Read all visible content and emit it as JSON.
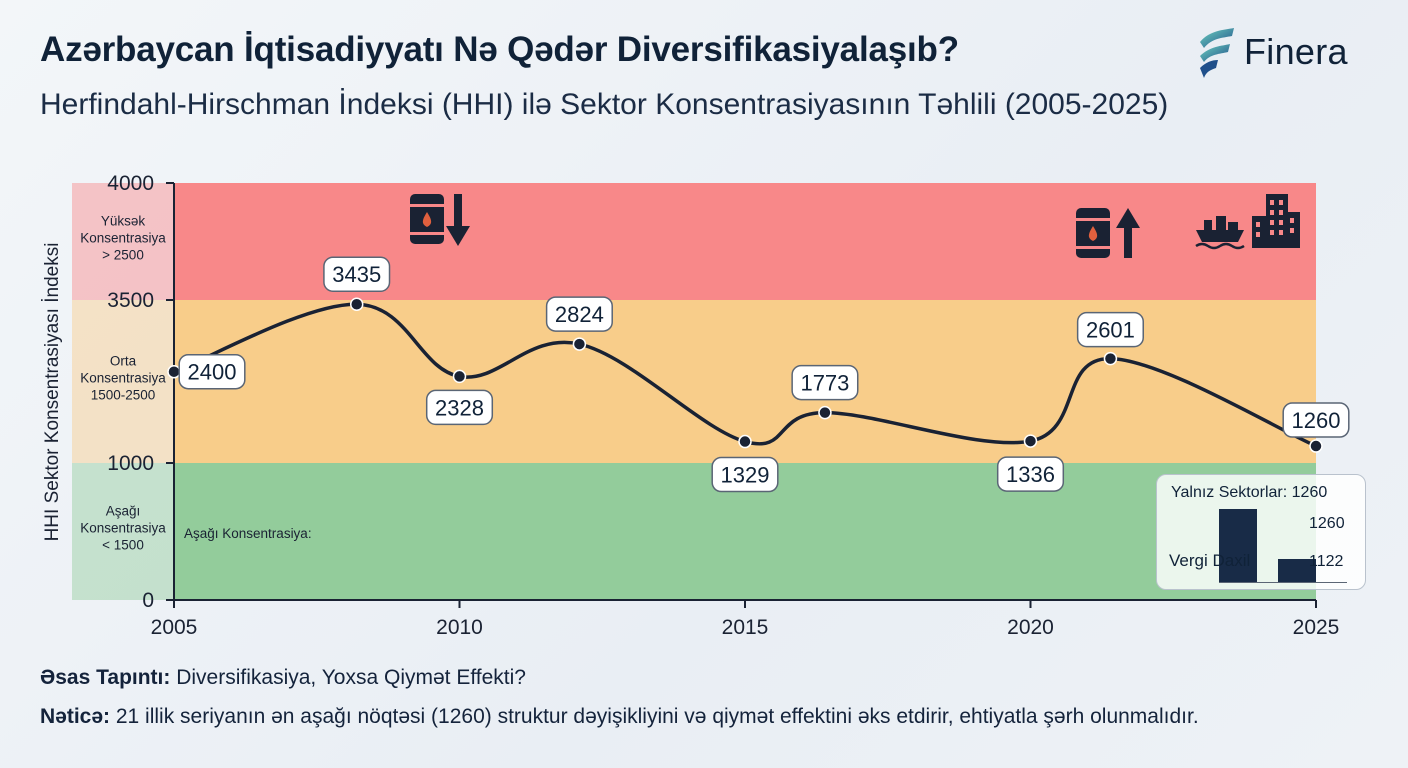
{
  "header": {
    "title": "Azərbaycan İqtisadiyyatı Nə Qədər Diversifikasiyalaşıb?",
    "subtitle": "Herfindahl-Hirschman İndeksi (HHI) ilə Sektor Konsentrasiyasının Təhlili (2005-2025)"
  },
  "logo": {
    "text": "Finera"
  },
  "chart_data": {
    "type": "line",
    "title": "",
    "xlabel": "",
    "ylabel": "HHI Sektor Konsentrasiyası İndeksi",
    "x_ticks": [
      "2005",
      "2010",
      "2015",
      "2020",
      "2025"
    ],
    "y_ticks": [
      "0",
      "1000",
      "3500",
      "4000"
    ],
    "series": [
      {
        "values": [
          {
            "x": 2005.0,
            "y": 2400
          },
          {
            "x": 2008.2,
            "y": 3435
          },
          {
            "x": 2010.0,
            "y": 2328
          },
          {
            "x": 2012.1,
            "y": 2824
          },
          {
            "x": 2015.0,
            "y": 1329
          },
          {
            "x": 2016.4,
            "y": 1773
          },
          {
            "x": 2020.0,
            "y": 1336
          },
          {
            "x": 2021.4,
            "y": 2601
          },
          {
            "x": 2025.0,
            "y": 1260
          }
        ],
        "labels": [
          "2400",
          "3435",
          "2328",
          "2824",
          "1329",
          "1773",
          "1336",
          "2601",
          "1260"
        ]
      }
    ],
    "bands": [
      {
        "label_lines": [
          "Yüksək",
          "Konsentrasiya",
          "> 2500"
        ],
        "color": "#f88889"
      },
      {
        "label_lines": [
          "Orta",
          "Konsentrasiya",
          "1500-2500"
        ],
        "color": "#f8cd8a"
      },
      {
        "label_lines": [
          "Aşağı",
          "Konsentrasiya",
          "< 1500"
        ],
        "color": "#93cc9b"
      }
    ],
    "inner_annotation": "Aşağı Konsentrasiya:",
    "icons": [
      "oil-barrel-down-icon",
      "oil-barrel-up-icon",
      "ship-icon",
      "factory-icon"
    ],
    "line_color": "#1a2233",
    "grid": false
  },
  "inset": {
    "title": "Yalnız Sektorlar: 1260",
    "bar_label": "Vergi Daxil",
    "values": [
      "1260",
      "1122"
    ],
    "bar_values": [
      1260,
      1122
    ]
  },
  "footer": {
    "finding_label": "Əsas Tapıntı:",
    "finding_text": " Diversifikasiya, Yoxsa Qiymət Effekti?",
    "conclusion_label": "Nəticə:",
    "conclusion_text": " 21 illik seriyanın ən aşağı nöqtəsi (1260) struktur dəyişikliyini və qiymət effektini əks etdirir, ehtiyatla şərh olunmalıdır."
  }
}
